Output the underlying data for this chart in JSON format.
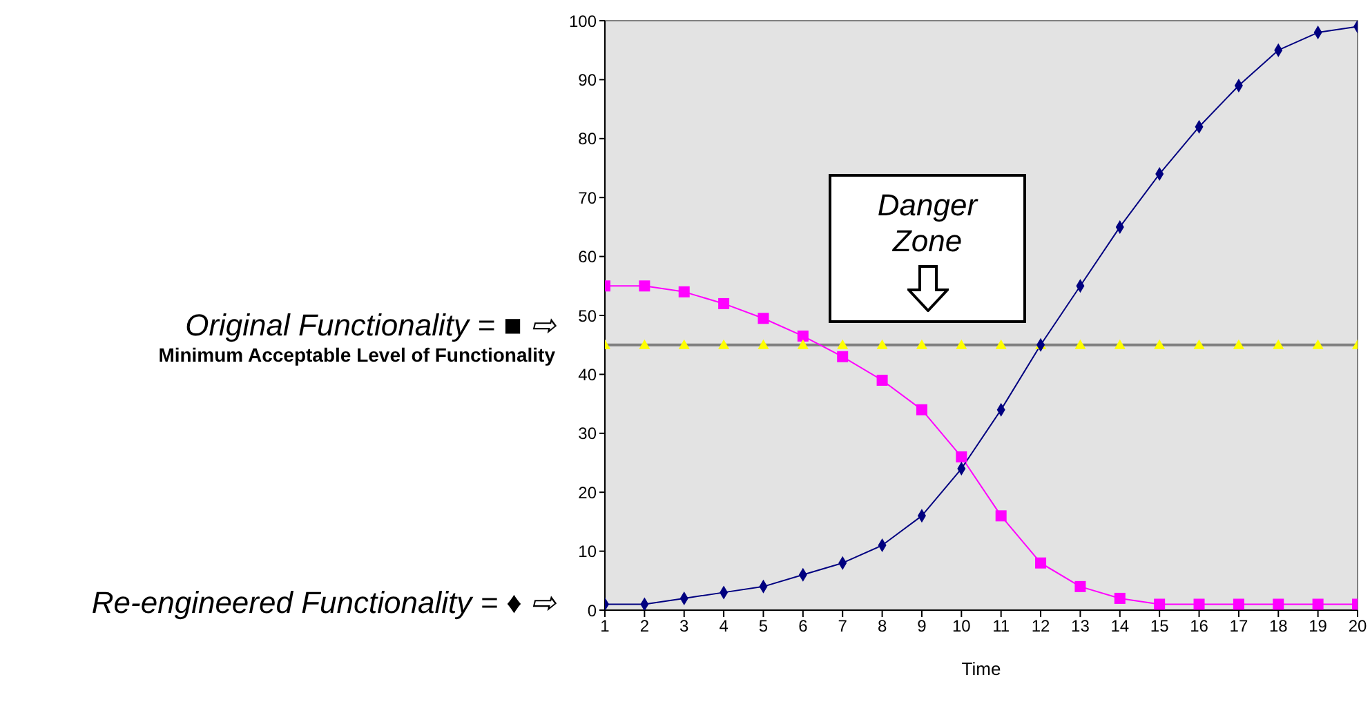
{
  "chart_data": {
    "type": "line",
    "xlabel": "Time",
    "x": [
      1,
      2,
      3,
      4,
      5,
      6,
      7,
      8,
      9,
      10,
      11,
      12,
      13,
      14,
      15,
      16,
      17,
      18,
      19,
      20
    ],
    "xlim": [
      1,
      20
    ],
    "xticks": [
      1,
      2,
      3,
      4,
      5,
      6,
      7,
      8,
      9,
      10,
      11,
      12,
      13,
      14,
      15,
      16,
      17,
      18,
      19,
      20
    ],
    "ylim": [
      0,
      100
    ],
    "yticks": [
      0,
      10,
      20,
      30,
      40,
      50,
      60,
      70,
      80,
      90,
      100
    ],
    "series": [
      {
        "name": "Original Functionality = ■ ⇨",
        "color": "#ff00ff",
        "marker": "square",
        "values": [
          55,
          55,
          54,
          52,
          49.5,
          46.5,
          43,
          39,
          34,
          26,
          16,
          8,
          4,
          2,
          1,
          1,
          1,
          1,
          1,
          1
        ]
      },
      {
        "name": "Minimum Acceptable Level of Functionality",
        "type": "scatter",
        "color": "#ffff00",
        "marker": "triangle",
        "values": [
          45,
          45,
          45,
          45,
          45,
          45,
          45,
          45,
          45,
          45,
          45,
          45,
          45,
          45,
          45,
          45,
          45,
          45,
          45,
          45
        ]
      },
      {
        "name": "Re-engineered Functionality = ♦ ⇨",
        "color": "#000080",
        "marker": "diamond",
        "values": [
          1,
          1,
          2,
          3,
          4,
          6,
          8,
          11,
          16,
          24,
          34,
          45,
          55,
          65,
          74,
          82,
          89,
          95,
          98,
          99
        ]
      }
    ],
    "ref_lines": [
      {
        "axis": "y",
        "value": 45,
        "color": "#808080"
      }
    ],
    "annotations": [
      "Danger Zone"
    ]
  }
}
